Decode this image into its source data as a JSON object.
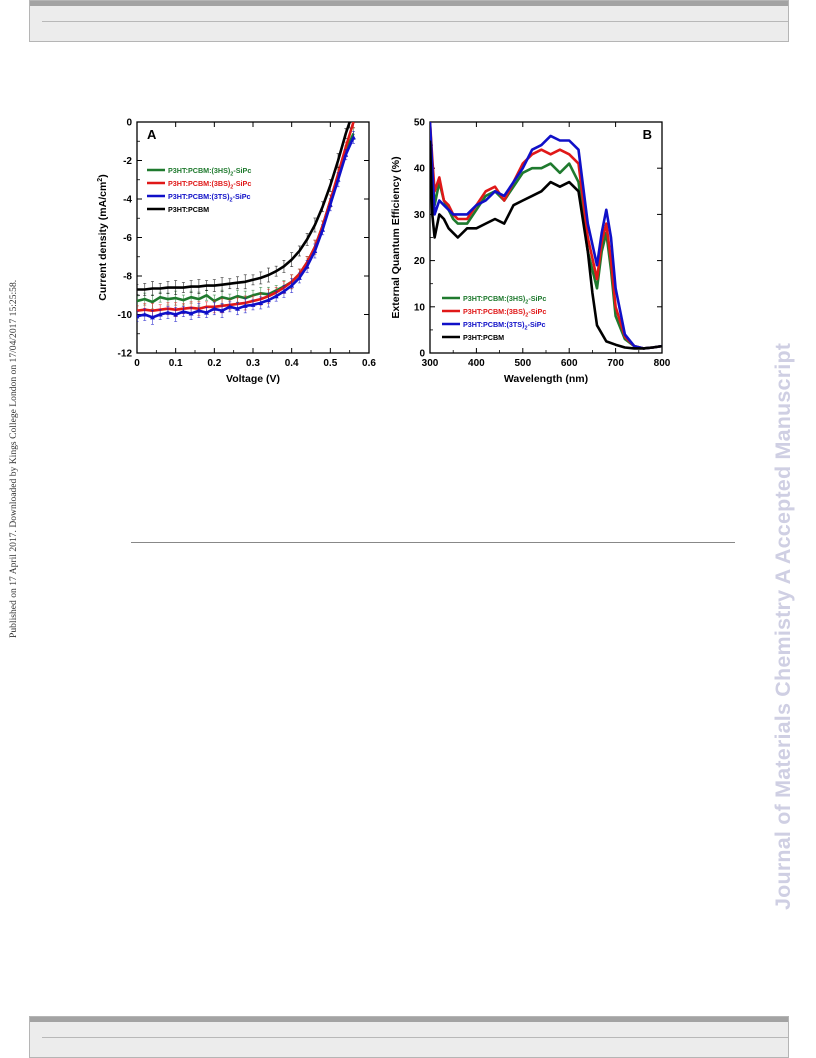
{
  "margin_left_text": "Published on 17 April 2017. Downloaded by Kings College London on 17/04/2017 15:25:58.",
  "watermark_text": "Journal of Materials Chemistry A Accepted Manuscript",
  "colors": {
    "green": "#1f7a2e",
    "red": "#e01818",
    "blue": "#1010c8",
    "black": "#000000"
  },
  "chart_data": [
    {
      "type": "line",
      "panel_label": "A",
      "xlabel": "Voltage (V)",
      "ylabel": "Current density (mA/cm",
      "ylabel_sup": "2",
      "ylabel_end": ")",
      "xlim": [
        0,
        0.6
      ],
      "ylim": [
        -12,
        0
      ],
      "xticks": [
        "0",
        "0.1",
        "0.2",
        "0.3",
        "0.4",
        "0.5",
        "0.6"
      ],
      "yticks": [
        "0",
        "-2",
        "-4",
        "-6",
        "-8",
        "-10",
        "-12"
      ],
      "legend": [
        {
          "pre": "P3HT:PCBM:(3HS)",
          "sub": "2",
          "post": "-SiPc",
          "color": "#1f7a2e"
        },
        {
          "pre": "P3HT:PCBM:(3BS)",
          "sub": "2",
          "post": "-SiPc",
          "color": "#e01818"
        },
        {
          "pre": "P3HT:PCBM:(3TS)",
          "sub": "2",
          "post": "-SiPc",
          "color": "#1010c8"
        },
        {
          "pre": "P3HT:PCBM",
          "sub": "",
          "post": "",
          "color": "#000000"
        }
      ],
      "series": [
        {
          "name": "P3HT:PCBM:(3HS)2-SiPc",
          "color": "#1f7a2e",
          "x": [
            0,
            0.02,
            0.04,
            0.06,
            0.08,
            0.1,
            0.12,
            0.14,
            0.16,
            0.18,
            0.2,
            0.22,
            0.24,
            0.26,
            0.28,
            0.3,
            0.32,
            0.34,
            0.36,
            0.38,
            0.4,
            0.42,
            0.44,
            0.46,
            0.48,
            0.5,
            0.52,
            0.54,
            0.56
          ],
          "y": [
            -9.3,
            -9.2,
            -9.35,
            -9.1,
            -9.2,
            -9.15,
            -9.25,
            -9.1,
            -9.2,
            -9.0,
            -9.3,
            -9.1,
            -9.2,
            -9.05,
            -9.15,
            -9.0,
            -8.9,
            -8.95,
            -8.75,
            -8.55,
            -8.3,
            -7.9,
            -7.3,
            -6.5,
            -5.4,
            -4.1,
            -2.8,
            -1.5,
            -0.6
          ]
        },
        {
          "name": "P3HT:PCBM:(3BS)2-SiPc",
          "color": "#e01818",
          "x": [
            0,
            0.02,
            0.04,
            0.06,
            0.08,
            0.1,
            0.12,
            0.14,
            0.16,
            0.18,
            0.2,
            0.22,
            0.24,
            0.26,
            0.28,
            0.3,
            0.32,
            0.34,
            0.36,
            0.38,
            0.4,
            0.42,
            0.44,
            0.46,
            0.48,
            0.5,
            0.52,
            0.54,
            0.56
          ],
          "y": [
            -9.8,
            -9.75,
            -9.8,
            -9.75,
            -9.7,
            -9.75,
            -9.7,
            -9.65,
            -9.7,
            -9.6,
            -9.6,
            -9.55,
            -9.5,
            -9.45,
            -9.4,
            -9.3,
            -9.2,
            -9.05,
            -8.85,
            -8.6,
            -8.3,
            -7.9,
            -7.3,
            -6.5,
            -5.4,
            -4.1,
            -2.7,
            -1.3,
            0.0
          ]
        },
        {
          "name": "P3HT:PCBM:(3TS)2-SiPc",
          "color": "#1010c8",
          "x": [
            0,
            0.02,
            0.04,
            0.06,
            0.08,
            0.1,
            0.12,
            0.14,
            0.16,
            0.18,
            0.2,
            0.22,
            0.24,
            0.26,
            0.28,
            0.3,
            0.32,
            0.34,
            0.36,
            0.38,
            0.4,
            0.42,
            0.44,
            0.46,
            0.48,
            0.5,
            0.52,
            0.54,
            0.56
          ],
          "y": [
            -10.1,
            -10.0,
            -10.15,
            -10.0,
            -9.9,
            -10.0,
            -9.85,
            -9.95,
            -9.8,
            -9.9,
            -9.7,
            -9.8,
            -9.6,
            -9.7,
            -9.55,
            -9.5,
            -9.4,
            -9.25,
            -9.05,
            -8.8,
            -8.5,
            -8.1,
            -7.5,
            -6.7,
            -5.6,
            -4.3,
            -3.0,
            -1.7,
            -0.8
          ]
        },
        {
          "name": "P3HT:PCBM",
          "color": "#000000",
          "x": [
            0,
            0.02,
            0.04,
            0.06,
            0.08,
            0.1,
            0.12,
            0.14,
            0.16,
            0.18,
            0.2,
            0.22,
            0.24,
            0.26,
            0.28,
            0.3,
            0.32,
            0.34,
            0.36,
            0.38,
            0.4,
            0.42,
            0.44,
            0.46,
            0.48,
            0.5,
            0.52,
            0.54,
            0.55
          ],
          "y": [
            -8.7,
            -8.7,
            -8.65,
            -8.65,
            -8.6,
            -8.6,
            -8.6,
            -8.55,
            -8.55,
            -8.5,
            -8.5,
            -8.45,
            -8.4,
            -8.35,
            -8.3,
            -8.2,
            -8.1,
            -7.95,
            -7.75,
            -7.5,
            -7.15,
            -6.7,
            -6.1,
            -5.35,
            -4.4,
            -3.3,
            -2.0,
            -0.6,
            0.0
          ]
        }
      ]
    },
    {
      "type": "line",
      "panel_label": "B",
      "xlabel": "Wavelength (nm)",
      "ylabel": "External Quantum Efficiency (%)",
      "xlim": [
        300,
        800
      ],
      "ylim": [
        0,
        50
      ],
      "xticks": [
        "300",
        "400",
        "500",
        "600",
        "700",
        "800"
      ],
      "yticks": [
        "0",
        "10",
        "20",
        "30",
        "40",
        "50"
      ],
      "legend": [
        {
          "pre": "P3HT:PCBM:(3HS)",
          "sub": "2",
          "post": "-SiPc",
          "color": "#1f7a2e"
        },
        {
          "pre": "P3HT:PCBM:(3BS)",
          "sub": "2",
          "post": "-SiPc",
          "color": "#e01818"
        },
        {
          "pre": "P3HT:PCBM:(3TS)",
          "sub": "2",
          "post": "-SiPc",
          "color": "#1010c8"
        },
        {
          "pre": "P3HT:PCBM",
          "sub": "",
          "post": "",
          "color": "#000000"
        }
      ],
      "series": [
        {
          "name": "P3HT:PCBM:(3HS)2-SiPc",
          "color": "#1f7a2e",
          "x": [
            300,
            305,
            310,
            320,
            330,
            340,
            350,
            360,
            380,
            400,
            420,
            440,
            460,
            480,
            500,
            520,
            540,
            560,
            580,
            600,
            620,
            640,
            660,
            670,
            680,
            690,
            700,
            720,
            740,
            760,
            780,
            800
          ],
          "y": [
            48,
            40,
            32,
            37,
            33,
            31,
            29,
            28,
            28,
            31,
            34,
            35,
            33,
            36,
            39,
            40,
            40,
            41,
            39,
            41,
            37,
            22,
            14,
            22,
            26,
            18,
            8,
            3,
            1.5,
            1,
            1.2,
            1.5
          ]
        },
        {
          "name": "P3HT:PCBM:(3BS)2-SiPc",
          "color": "#e01818",
          "x": [
            300,
            305,
            310,
            320,
            330,
            340,
            350,
            360,
            380,
            400,
            420,
            440,
            460,
            480,
            500,
            520,
            540,
            560,
            580,
            600,
            620,
            640,
            660,
            670,
            680,
            690,
            700,
            720,
            740,
            760,
            780,
            800
          ],
          "y": [
            50,
            42,
            35,
            38,
            33,
            32,
            30,
            29,
            29,
            32,
            35,
            36,
            33,
            37,
            41,
            43,
            44,
            43,
            44,
            43,
            41,
            25,
            16,
            24,
            28,
            20,
            10,
            3.5,
            1.5,
            1,
            1.2,
            1.5
          ]
        },
        {
          "name": "P3HT:PCBM:(3TS)2-SiPc",
          "color": "#1010c8",
          "x": [
            300,
            305,
            310,
            320,
            330,
            340,
            350,
            360,
            380,
            400,
            420,
            440,
            460,
            480,
            500,
            520,
            540,
            560,
            580,
            600,
            620,
            640,
            660,
            670,
            680,
            690,
            700,
            720,
            740,
            760,
            780,
            800
          ],
          "y": [
            50,
            40,
            30,
            33,
            32,
            31,
            30,
            30,
            30,
            32,
            33,
            35,
            34,
            37,
            40,
            44,
            45,
            47,
            46,
            46,
            44,
            28,
            19,
            26,
            31,
            25,
            14,
            4,
            1.5,
            1,
            1.2,
            1.5
          ]
        },
        {
          "name": "P3HT:PCBM",
          "color": "#000000",
          "x": [
            300,
            305,
            310,
            320,
            330,
            340,
            350,
            360,
            380,
            400,
            420,
            440,
            460,
            480,
            500,
            520,
            540,
            560,
            580,
            600,
            620,
            640,
            650,
            660,
            680,
            700,
            720,
            740,
            760,
            780,
            800
          ],
          "y": [
            46,
            30,
            25,
            30,
            29,
            27,
            26,
            25,
            27,
            27,
            28,
            29,
            28,
            32,
            33,
            34,
            35,
            37,
            36,
            37,
            35,
            22,
            13,
            6,
            2.5,
            1.8,
            1.2,
            1,
            1,
            1.2,
            1.5
          ]
        }
      ]
    }
  ]
}
